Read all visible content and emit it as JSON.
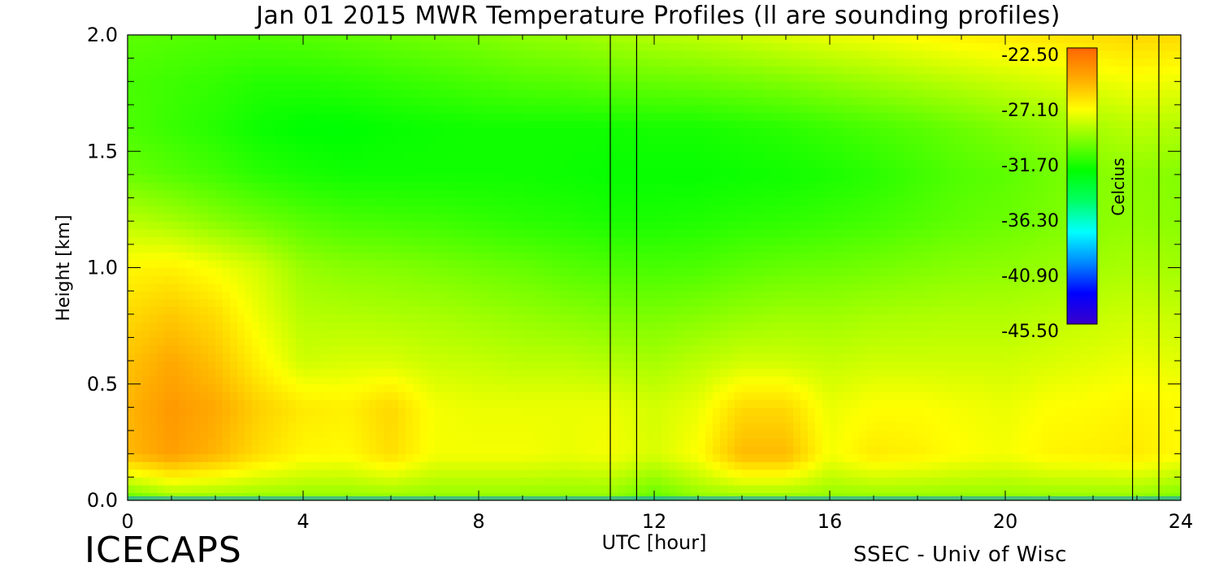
{
  "header": {
    "title": "Jan 01 2015 MWR Temperature Profiles (ll are sounding profiles)"
  },
  "footer": {
    "brand": "ICECAPS",
    "credit": "SSEC - Univ of Wisc"
  },
  "chart_data": {
    "type": "heatmap",
    "title": "Jan 01 2015 MWR Temperature Profiles (ll are sounding profiles)",
    "xlabel": "UTC [hour]",
    "ylabel": "Height [km]",
    "xlim": [
      0,
      24
    ],
    "ylim": [
      0,
      2.0
    ],
    "x_ticks": [
      "0",
      "4",
      "8",
      "12",
      "16",
      "20",
      "24"
    ],
    "y_ticks": [
      "0.0",
      "0.5",
      "1.0",
      "1.5",
      "2.0"
    ],
    "colorbar": {
      "label": "Celcius",
      "ticks": [
        "-22.50",
        "-27.10",
        "-31.70",
        "-36.30",
        "-40.90",
        "-45.50"
      ],
      "range": [
        -45.5,
        -22.5
      ],
      "palette": [
        "#3a00cc",
        "#0000ff",
        "#0088ff",
        "#00ffff",
        "#00ff66",
        "#00ff00",
        "#80ff00",
        "#ffff00",
        "#ffaa00",
        "#ff6600"
      ]
    },
    "sounding_lines_utc": [
      11.0,
      11.6,
      22.9,
      23.5
    ],
    "grid_utc": [
      0,
      1,
      2,
      3,
      4,
      5,
      6,
      7,
      8,
      9,
      10,
      11,
      12,
      13,
      14,
      15,
      16,
      17,
      18,
      19,
      20,
      21,
      22,
      23,
      24
    ],
    "grid_height_km": [
      0.0,
      0.2,
      0.4,
      0.6,
      0.8,
      1.0,
      1.2,
      1.4,
      1.6,
      1.8,
      2.0
    ],
    "temperature_celsius": [
      [
        -31.0,
        -30.0,
        -30.0,
        -30.0,
        -30.0,
        -30.0,
        -30.0,
        -30.0,
        -30.0,
        -30.0,
        -30.0,
        -30.0,
        -31.0,
        -30.0,
        -30.0,
        -30.0,
        -30.0,
        -30.0,
        -30.0,
        -30.0,
        -30.0,
        -30.0,
        -30.0,
        -30.0,
        -30.5
      ],
      [
        -25.5,
        -24.6,
        -25.4,
        -26.6,
        -27.4,
        -27.5,
        -26.6,
        -27.8,
        -27.8,
        -27.8,
        -28.0,
        -27.8,
        -28.4,
        -27.6,
        -25.5,
        -25.5,
        -27.8,
        -27.0,
        -27.2,
        -27.6,
        -27.8,
        -27.3,
        -27.2,
        -27.0,
        -27.5
      ],
      [
        -25.4,
        -24.4,
        -25.0,
        -26.2,
        -27.0,
        -27.2,
        -26.4,
        -27.8,
        -28.0,
        -28.0,
        -28.0,
        -28.0,
        -28.5,
        -28.0,
        -26.5,
        -26.5,
        -28.0,
        -27.6,
        -27.6,
        -27.8,
        -28.0,
        -27.6,
        -27.5,
        -27.3,
        -27.5
      ],
      [
        -25.8,
        -25.0,
        -25.8,
        -27.3,
        -28.6,
        -28.4,
        -28.4,
        -28.7,
        -28.8,
        -29.0,
        -29.0,
        -29.2,
        -29.4,
        -29.0,
        -28.6,
        -28.6,
        -28.8,
        -28.6,
        -28.6,
        -28.6,
        -28.6,
        -28.4,
        -28.2,
        -28.0,
        -28.2
      ],
      [
        -26.5,
        -26.0,
        -26.6,
        -28.0,
        -29.1,
        -29.2,
        -29.3,
        -29.4,
        -29.6,
        -29.8,
        -30.0,
        -30.2,
        -30.3,
        -30.1,
        -29.8,
        -29.6,
        -29.6,
        -29.4,
        -29.3,
        -29.2,
        -29.2,
        -29.0,
        -28.8,
        -28.6,
        -28.8
      ],
      [
        -27.4,
        -27.2,
        -27.8,
        -28.5,
        -29.7,
        -30.0,
        -30.1,
        -30.3,
        -30.5,
        -30.7,
        -31.0,
        -31.2,
        -31.3,
        -31.2,
        -30.9,
        -30.7,
        -30.6,
        -30.4,
        -30.2,
        -30.0,
        -29.9,
        -29.7,
        -29.5,
        -29.3,
        -29.5
      ],
      [
        -29.0,
        -29.4,
        -30.0,
        -30.5,
        -31.0,
        -31.3,
        -31.4,
        -31.5,
        -31.7,
        -31.9,
        -32.0,
        -32.2,
        -32.2,
        -32.1,
        -31.9,
        -31.8,
        -31.6,
        -31.4,
        -31.1,
        -30.8,
        -30.6,
        -30.3,
        -30.0,
        -29.8,
        -30.0
      ],
      [
        -30.6,
        -31.0,
        -31.4,
        -31.9,
        -32.2,
        -32.4,
        -32.4,
        -32.4,
        -32.4,
        -32.4,
        -32.5,
        -32.6,
        -32.6,
        -32.6,
        -32.5,
        -32.4,
        -32.2,
        -31.9,
        -31.5,
        -31.1,
        -30.9,
        -30.5,
        -30.1,
        -29.9,
        -30.1
      ],
      [
        -31.2,
        -31.6,
        -32.0,
        -32.5,
        -32.8,
        -32.8,
        -32.6,
        -32.5,
        -32.4,
        -32.4,
        -32.4,
        -32.4,
        -32.3,
        -32.3,
        -32.1,
        -31.9,
        -31.6,
        -31.3,
        -31.0,
        -30.6,
        -30.2,
        -29.8,
        -29.4,
        -29.0,
        -29.2
      ],
      [
        -31.3,
        -31.5,
        -31.7,
        -32.0,
        -32.0,
        -31.9,
        -31.7,
        -31.5,
        -31.3,
        -31.1,
        -31.0,
        -30.8,
        -30.7,
        -30.6,
        -30.4,
        -30.2,
        -29.9,
        -29.6,
        -29.3,
        -29.0,
        -28.7,
        -28.4,
        -28.1,
        -27.8,
        -28.0
      ],
      [
        -30.9,
        -31.0,
        -31.1,
        -31.1,
        -31.0,
        -30.8,
        -30.6,
        -30.4,
        -30.2,
        -29.9,
        -29.7,
        -29.4,
        -29.1,
        -28.9,
        -28.6,
        -28.3,
        -28.0,
        -27.8,
        -27.5,
        -27.2,
        -27.0,
        -26.8,
        -26.6,
        -26.4,
        -26.5
      ]
    ]
  }
}
